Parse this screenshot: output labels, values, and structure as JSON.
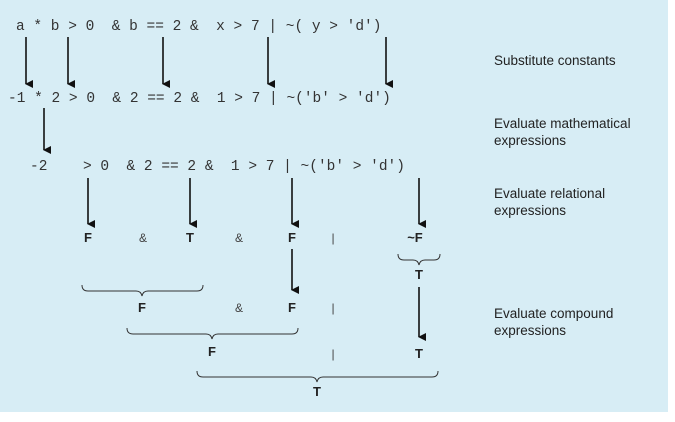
{
  "expression_rows": {
    "row1": {
      "expr": "a * b > 0  & b == 2 &  x > 7 | ~( y > 'd')"
    },
    "row2": {
      "expr": "-1 * 2 > 0  & 2 == 2 &  1 > 7 | ~('b' > 'd')"
    },
    "row3": {
      "lead": "-2",
      "expr": "> 0  & 2 == 2 &  1 > 7 | ~('b' > 'd')"
    }
  },
  "results": {
    "row4": {
      "f1": "F",
      "and1": "&",
      "t1": "T",
      "and2": "&",
      "f2": "F",
      "or1": "|",
      "notf": "~F",
      "t2": "T"
    },
    "row5": {
      "f": "F",
      "and": "&",
      "f2": "F",
      "or": "|"
    },
    "row6": {
      "f": "F",
      "or": "|",
      "t": "T"
    },
    "row7": {
      "t": "T"
    }
  },
  "step_labels": {
    "s1": [
      "Substitute constants"
    ],
    "s2": [
      "Evaluate mathematical",
      "expressions"
    ],
    "s3": [
      "Evaluate relational",
      "expressions"
    ],
    "s4": [
      "Evaluate compound",
      "expressions"
    ]
  },
  "colors": {
    "panel": "#d7edf5",
    "text": "#333333",
    "arrow": "#111111"
  }
}
